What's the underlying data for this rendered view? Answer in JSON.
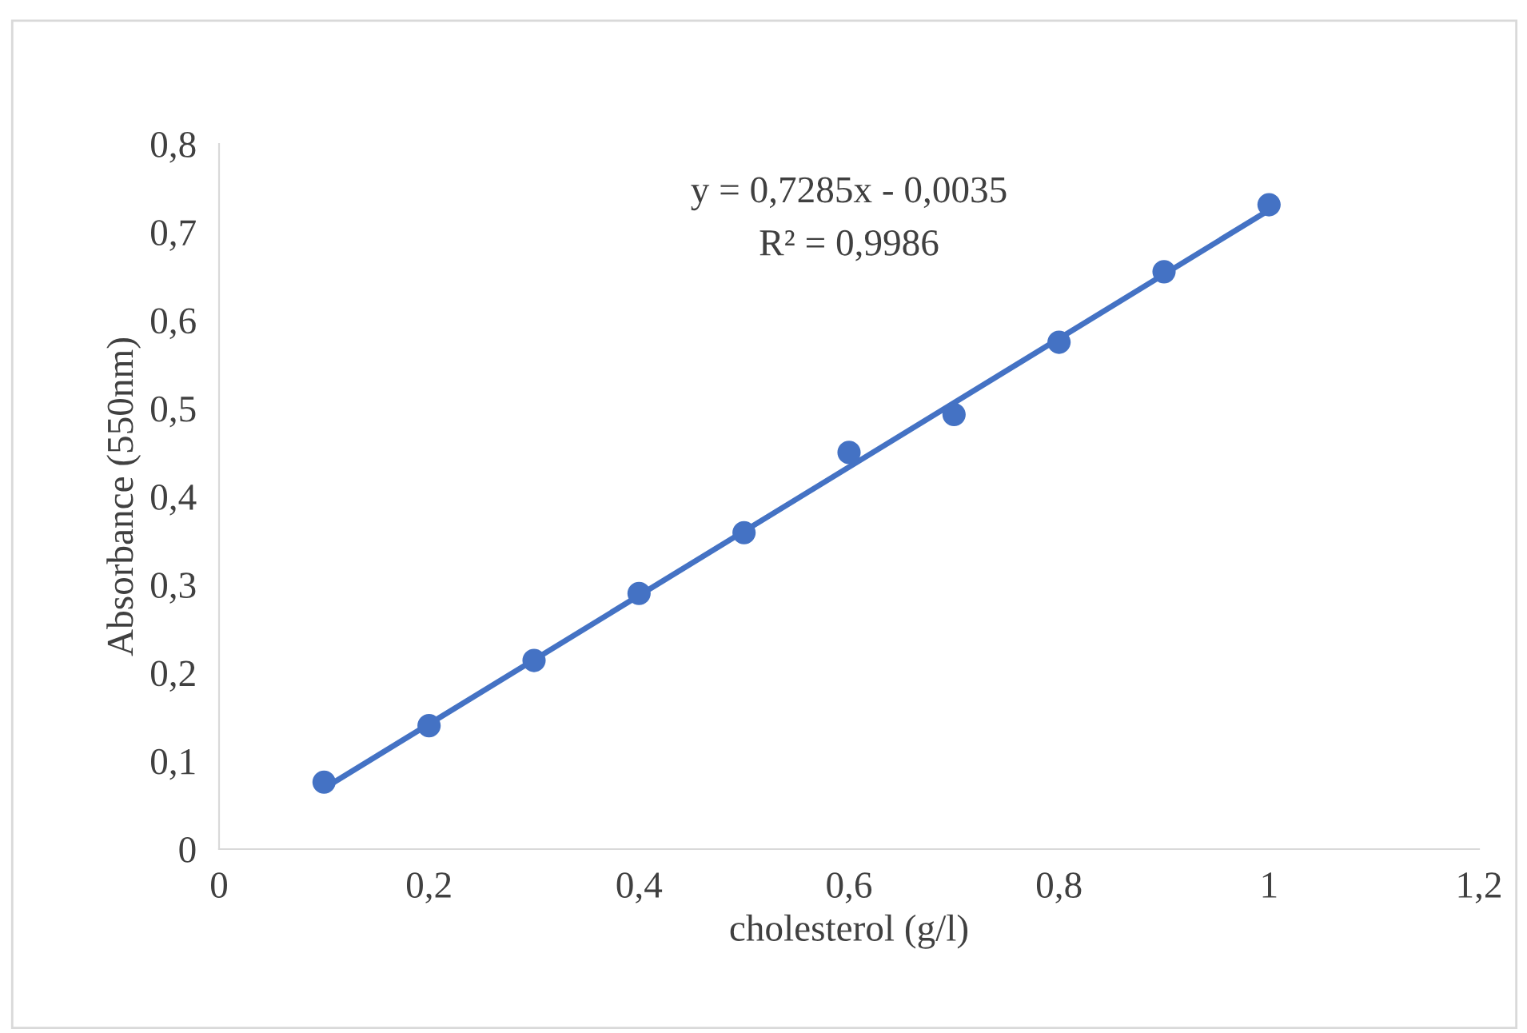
{
  "chart_data": {
    "type": "scatter",
    "xlabel": "cholesterol (g/l)",
    "ylabel": "Absorbance (550nm)",
    "annotations": [
      "y = 0,7285x - 0,0035",
      "R² = 0,9986"
    ],
    "x": [
      0.1,
      0.2,
      0.3,
      0.4,
      0.5,
      0.6,
      0.7,
      0.8,
      0.9,
      1.0
    ],
    "series": [
      {
        "color": "#4472c4",
        "marker": "circle",
        "values": [
          0.076,
          0.14,
          0.214,
          0.29,
          0.359,
          0.45,
          0.493,
          0.575,
          0.655,
          0.731
        ]
      },
      {
        "type": "line",
        "color": "#4472c4",
        "line_style": "solid",
        "x": [
          0.1,
          1.0
        ],
        "values": [
          0.069,
          0.725
        ]
      }
    ],
    "xlim": [
      0,
      1.2
    ],
    "ylim": [
      0,
      0.8
    ],
    "xticks": [
      0,
      {
        "value": 0.2,
        "label": "0,2"
      },
      {
        "value": 0.4,
        "label": "0,4"
      },
      {
        "value": 0.6,
        "label": "0,6"
      },
      {
        "value": 0.8,
        "label": "0,8"
      },
      1,
      {
        "value": 1.2,
        "label": "1,2"
      }
    ],
    "yticks": [
      0,
      {
        "value": 0.1,
        "label": "0,1"
      },
      {
        "value": 0.2,
        "label": "0,2"
      },
      {
        "value": 0.3,
        "label": "0,3"
      },
      {
        "value": 0.4,
        "label": "0,4"
      },
      {
        "value": 0.5,
        "label": "0,5"
      },
      {
        "value": 0.6,
        "label": "0,6"
      },
      {
        "value": 0.7,
        "label": "0,7"
      },
      {
        "value": 0.8,
        "label": "0,8"
      }
    ],
    "grid": false,
    "legend": false
  }
}
